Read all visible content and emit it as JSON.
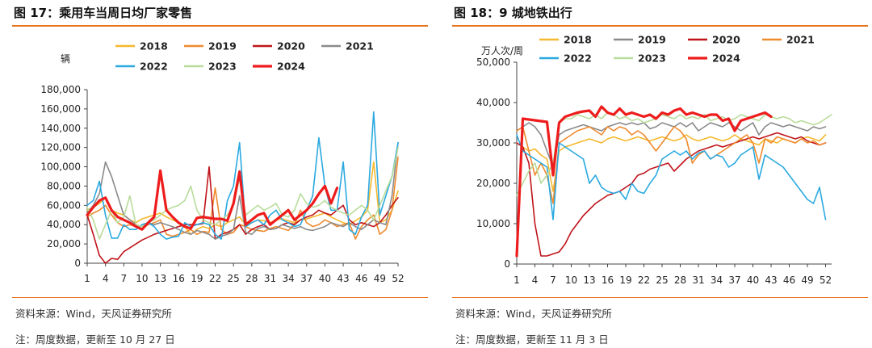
{
  "chart_data": [
    {
      "type": "line",
      "title": "图 17：乘用车当周日均厂家零售",
      "ylabel": "辆",
      "xlabel": "",
      "ylim": [
        0,
        180000
      ],
      "yticks": [
        0,
        20000,
        40000,
        60000,
        80000,
        100000,
        120000,
        140000,
        160000,
        180000
      ],
      "ytick_labels": [
        "0",
        "20,000",
        "40,000",
        "60,000",
        "80,000",
        "100,000",
        "120,000",
        "140,000",
        "160,000",
        "180,000"
      ],
      "xlim": [
        1,
        52
      ],
      "xticks": [
        "1",
        "4",
        "7",
        "10",
        "13",
        "16",
        "19",
        "22",
        "25",
        "28",
        "31",
        "34",
        "37",
        "40",
        "43",
        "46",
        "49",
        "52"
      ],
      "grid": false,
      "legend": "top",
      "series": [
        {
          "name": "2018",
          "color": "#f5b82e",
          "width": 1.6,
          "values": [
            55000,
            58000,
            62000,
            68000,
            55000,
            52000,
            50000,
            45000,
            42000,
            46000,
            48000,
            50000,
            52000,
            48000,
            45000,
            42000,
            38000,
            30000,
            35000,
            38000,
            36000,
            40000,
            38000,
            42000,
            45000,
            48000,
            40000,
            42000,
            45000,
            44000,
            42000,
            45000,
            46000,
            44000,
            42000,
            45000,
            46000,
            48000,
            50000,
            52000,
            48000,
            45000,
            42000,
            40000,
            44000,
            48000,
            55000,
            105000,
            42000,
            45000,
            55000,
            75000
          ]
        },
        {
          "name": "2019",
          "color": "#ef8a2e",
          "width": 1.6,
          "values": [
            48000,
            52000,
            55000,
            60000,
            50000,
            42000,
            38000,
            40000,
            38000,
            36000,
            40000,
            42000,
            45000,
            30000,
            28000,
            30000,
            32000,
            35000,
            30000,
            33000,
            32000,
            78000,
            35000,
            30000,
            32000,
            40000,
            38000,
            35000,
            34000,
            33000,
            36000,
            38000,
            36000,
            34000,
            40000,
            55000,
            42000,
            38000,
            40000,
            45000,
            42000,
            38000,
            40000,
            42000,
            25000,
            38000,
            45000,
            50000,
            30000,
            35000,
            55000,
            110000
          ]
        },
        {
          "name": "2020",
          "color": "#c0141a",
          "width": 1.6,
          "values": [
            50000,
            30000,
            8000,
            0,
            5000,
            4000,
            12000,
            16000,
            20000,
            24000,
            27000,
            30000,
            32000,
            34000,
            36000,
            38000,
            40000,
            40000,
            40000,
            41000,
            100000,
            25000,
            30000,
            32000,
            35000,
            40000,
            30000,
            35000,
            38000,
            40000,
            35000,
            36000,
            40000,
            42000,
            40000,
            45000,
            48000,
            50000,
            55000,
            52000,
            50000,
            55000,
            60000,
            45000,
            40000,
            42000,
            40000,
            38000,
            42000,
            50000,
            60000,
            68000
          ]
        },
        {
          "name": "2021",
          "color": "#8a8a8a",
          "width": 1.6,
          "values": [
            52000,
            60000,
            72000,
            105000,
            90000,
            70000,
            50000,
            45000,
            40000,
            38000,
            42000,
            40000,
            42000,
            40000,
            38000,
            35000,
            32000,
            30000,
            34000,
            32000,
            30000,
            25000,
            28000,
            30000,
            35000,
            70000,
            32000,
            30000,
            36000,
            38000,
            35000,
            36000,
            40000,
            38000,
            36000,
            38000,
            35000,
            34000,
            36000,
            38000,
            42000,
            40000,
            38000,
            42000,
            38000,
            35000,
            40000,
            45000,
            42000,
            40000,
            70000,
            125000
          ]
        },
        {
          "name": "2022",
          "color": "#2aa9e0",
          "width": 1.6,
          "values": [
            60000,
            65000,
            85000,
            50000,
            26000,
            26000,
            40000,
            35000,
            35000,
            40000,
            42000,
            38000,
            30000,
            25000,
            27000,
            28000,
            42000,
            38000,
            40000,
            42000,
            40000,
            30000,
            25000,
            65000,
            80000,
            125000,
            38000,
            42000,
            45000,
            40000,
            50000,
            55000,
            45000,
            42000,
            38000,
            40000,
            55000,
            70000,
            130000,
            80000,
            55000,
            55000,
            105000,
            35000,
            30000,
            48000,
            60000,
            157000,
            50000,
            70000,
            90000,
            125000
          ]
        },
        {
          "name": "2023",
          "color": "#b8dc9a",
          "width": 1.6,
          "values": [
            58000,
            45000,
            25000,
            40000,
            55000,
            42000,
            48000,
            70000,
            40000,
            38000,
            42000,
            45000,
            50000,
            55000,
            58000,
            60000,
            65000,
            80000,
            55000,
            45000,
            42000,
            40000,
            45000,
            50000,
            60000,
            88000,
            50000,
            55000,
            60000,
            55000,
            58000,
            62000,
            50000,
            48000,
            55000,
            72000,
            62000,
            58000,
            60000,
            65000,
            58000,
            55000,
            52000,
            50000,
            55000,
            60000,
            55000,
            45000,
            60000,
            75000,
            90000,
            120000
          ]
        },
        {
          "name": "2024",
          "color": "#ee1c1c",
          "width": 3.2,
          "values": [
            50000,
            58000,
            65000,
            68000,
            55000,
            48000,
            45000,
            42000,
            38000,
            35000,
            42000,
            48000,
            96000,
            55000,
            48000,
            42000,
            38000,
            36000,
            47000,
            48000,
            47000,
            46000,
            46000,
            44000,
            62000,
            95000,
            40000,
            45000,
            50000,
            52000,
            40000,
            45000,
            50000,
            55000,
            45000,
            50000,
            55000,
            62000,
            72000,
            80000,
            62000,
            78000,
            null,
            null,
            null,
            null,
            null,
            null,
            null,
            null,
            null,
            null
          ]
        }
      ]
    },
    {
      "type": "line",
      "title": "图 18：9 城地铁出行",
      "ylabel": "万人次/周",
      "xlabel": "",
      "ylim": [
        0,
        50000
      ],
      "yticks": [
        0,
        10000,
        20000,
        30000,
        40000,
        50000
      ],
      "ytick_labels": [
        "0",
        "10,000",
        "20,000",
        "30,000",
        "40,000",
        "50,000"
      ],
      "xlim": [
        1,
        53
      ],
      "xticks": [
        "1",
        "4",
        "7",
        "10",
        "13",
        "16",
        "19",
        "22",
        "25",
        "28",
        "31",
        "34",
        "37",
        "40",
        "43",
        "46",
        "49",
        "52"
      ],
      "grid": false,
      "legend": "top",
      "series": [
        {
          "name": "2018",
          "color": "#f5b82e",
          "width": 1.6,
          "values": [
            30000,
            29000,
            28000,
            28500,
            27000,
            26000,
            18000,
            28000,
            29000,
            29500,
            30000,
            30500,
            31000,
            30500,
            30000,
            31000,
            31500,
            31000,
            30500,
            31000,
            31500,
            31000,
            30500,
            31000,
            31500,
            31000,
            30500,
            31000,
            32000,
            31000,
            30500,
            31000,
            31500,
            31000,
            30500,
            31000,
            32000,
            31000,
            30500,
            30000,
            29500,
            31000,
            30500,
            30000,
            31000,
            30500,
            30000,
            31000,
            31500,
            31000,
            30500,
            32000,
            null
          ]
        },
        {
          "name": "2019",
          "color": "#8a8a8a",
          "width": 1.6,
          "values": [
            33000,
            34000,
            35000,
            34000,
            32000,
            28000,
            24000,
            32000,
            33000,
            33500,
            34000,
            34500,
            34000,
            33500,
            33000,
            34000,
            34500,
            35000,
            34500,
            35000,
            34500,
            35000,
            33500,
            34000,
            35000,
            34500,
            34000,
            35000,
            34000,
            35000,
            33000,
            34000,
            35000,
            34500,
            34000,
            35000,
            34000,
            33000,
            34000,
            35000,
            32000,
            34000,
            35000,
            34500,
            34000,
            34500,
            34000,
            33500,
            33000,
            34000,
            33500,
            34000,
            null
          ]
        },
        {
          "name": "2020",
          "color": "#c0141a",
          "width": 1.6,
          "values": [
            30000,
            29000,
            25000,
            10000,
            2000,
            2000,
            2500,
            3000,
            5000,
            8000,
            10000,
            12000,
            13500,
            15000,
            16000,
            17000,
            17500,
            18000,
            19000,
            20000,
            22000,
            22500,
            23500,
            24000,
            24500,
            25000,
            23000,
            24500,
            26000,
            27000,
            28000,
            28500,
            29000,
            29500,
            29000,
            29500,
            30000,
            30500,
            31000,
            31500,
            31000,
            31500,
            32000,
            32500,
            32000,
            31500,
            31000,
            31500,
            30500,
            30000,
            29500,
            30000,
            null
          ]
        },
        {
          "name": "2021",
          "color": "#ef8a2e",
          "width": 1.6,
          "values": [
            33000,
            34000,
            28000,
            22000,
            25000,
            22000,
            15000,
            30000,
            31000,
            32000,
            33000,
            33500,
            34000,
            33000,
            32000,
            34000,
            33000,
            34000,
            33500,
            32000,
            33000,
            32000,
            30000,
            28000,
            30000,
            32000,
            34000,
            33000,
            31000,
            25000,
            27000,
            28000,
            26000,
            27000,
            28000,
            29000,
            30000,
            31000,
            32000,
            30000,
            25000,
            31000,
            30000,
            31500,
            31000,
            30500,
            30000,
            31000,
            30000,
            30500,
            29500,
            30000,
            null
          ]
        },
        {
          "name": "2022",
          "color": "#2aa9e0",
          "width": 1.6,
          "values": [
            32000,
            28000,
            27000,
            26000,
            25000,
            24000,
            11000,
            30000,
            29000,
            28000,
            27000,
            26000,
            20000,
            22000,
            19000,
            18000,
            17500,
            18000,
            16000,
            20000,
            18000,
            17500,
            20000,
            22000,
            26000,
            27000,
            28000,
            27000,
            28000,
            26000,
            27500,
            28000,
            26000,
            27000,
            26500,
            24000,
            25000,
            27000,
            28000,
            29000,
            21000,
            27000,
            26000,
            25000,
            24000,
            22000,
            20000,
            18000,
            16000,
            15000,
            19000,
            11000,
            null
          ]
        },
        {
          "name": "2023",
          "color": "#b8dc9a",
          "width": 1.6,
          "values": [
            17000,
            20000,
            23000,
            25000,
            20000,
            22000,
            25000,
            35000,
            36000,
            36000,
            37000,
            36500,
            36000,
            37000,
            36000,
            37500,
            37000,
            36000,
            36500,
            35500,
            36000,
            35000,
            35500,
            36000,
            37000,
            36500,
            36000,
            37000,
            36000,
            36500,
            36000,
            37000,
            35500,
            36000,
            36500,
            35500,
            36000,
            37000,
            36500,
            36000,
            35500,
            37000,
            36500,
            36000,
            36500,
            36000,
            35000,
            35500,
            35000,
            34500,
            35000,
            36000,
            37000
          ]
        },
        {
          "name": "2024",
          "color": "#ee1c1c",
          "width": 3.2,
          "values": [
            2000,
            36000,
            35800,
            35600,
            35400,
            35200,
            22000,
            35000,
            36500,
            37000,
            37500,
            37800,
            38000,
            36500,
            39000,
            37500,
            37000,
            38500,
            37000,
            37500,
            37000,
            36500,
            37000,
            36000,
            37500,
            37000,
            38000,
            38500,
            37000,
            37500,
            37000,
            36500,
            37000,
            37000,
            35500,
            36000,
            33000,
            35500,
            36000,
            36500,
            37000,
            37500,
            36500,
            null,
            null,
            null,
            null,
            null,
            null,
            null,
            null,
            null,
            null
          ]
        }
      ]
    }
  ],
  "left": {
    "source": "资料来源：Wind，天风证券研究所",
    "note": "注：周度数据，更新至 10 月 27 日"
  },
  "right": {
    "source": "资料来源：Wind，天风证券研究所",
    "note": "注：周度数据，更新至 11 月 3 日"
  }
}
